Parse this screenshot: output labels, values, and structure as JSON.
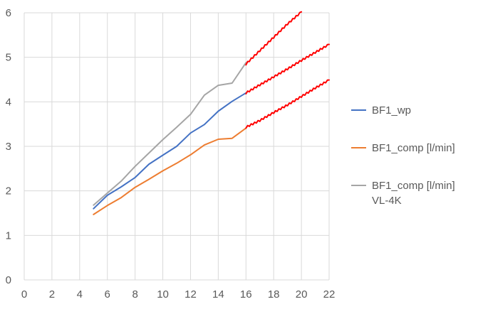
{
  "chart_data": {
    "type": "line",
    "title": "",
    "xlabel": "",
    "ylabel": "",
    "xlim": [
      0,
      22
    ],
    "ylim": [
      0,
      6
    ],
    "x_ticks": [
      0,
      2,
      4,
      6,
      8,
      10,
      12,
      14,
      16,
      18,
      20,
      22
    ],
    "y_ticks": [
      0,
      1,
      2,
      3,
      4,
      5,
      6
    ],
    "grid": true,
    "legend_position": "right",
    "series": [
      {
        "name": "BF1_wp",
        "color": "#4472C4",
        "x": [
          5,
          6,
          7,
          8,
          9,
          10,
          11,
          12,
          13,
          14,
          15,
          16
        ],
        "y": [
          1.6,
          1.9,
          2.09,
          2.3,
          2.6,
          2.8,
          3.0,
          3.3,
          3.49,
          3.79,
          4.01,
          4.2
        ]
      },
      {
        "name": "BF1_comp [l/min]",
        "color": "#ED7D31",
        "x": [
          5,
          6,
          7,
          8,
          9,
          10,
          11,
          12,
          13,
          14,
          15,
          16
        ],
        "y": [
          1.47,
          1.67,
          1.85,
          2.08,
          2.26,
          2.45,
          2.62,
          2.81,
          3.03,
          3.16,
          3.18,
          3.41
        ]
      },
      {
        "name": "BF1_comp [l/min] VL-4K",
        "name_lines": [
          "BF1_comp [l/min]",
          "VL-4K"
        ],
        "color": "#A5A5A5",
        "x": [
          5,
          6,
          7,
          8,
          9,
          10,
          11,
          12,
          13,
          14,
          15,
          16
        ],
        "y": [
          1.68,
          1.95,
          2.22,
          2.55,
          2.85,
          3.15,
          3.43,
          3.72,
          4.15,
          4.37,
          4.42,
          4.88
        ]
      }
    ],
    "extrapolations": [
      {
        "color": "#FF0000",
        "x": [
          16,
          17,
          18,
          19,
          20
        ],
        "y": [
          4.85,
          5.15,
          5.45,
          5.75,
          6.02
        ]
      },
      {
        "color": "#FF0000",
        "x": [
          16,
          17,
          18,
          19,
          20,
          21,
          22
        ],
        "y": [
          4.2,
          4.38,
          4.56,
          4.74,
          4.93,
          5.11,
          5.29
        ]
      },
      {
        "color": "#FF0000",
        "x": [
          16,
          17,
          18,
          19,
          20,
          21,
          22
        ],
        "y": [
          3.43,
          3.58,
          3.76,
          3.93,
          4.12,
          4.31,
          4.49
        ]
      }
    ]
  }
}
